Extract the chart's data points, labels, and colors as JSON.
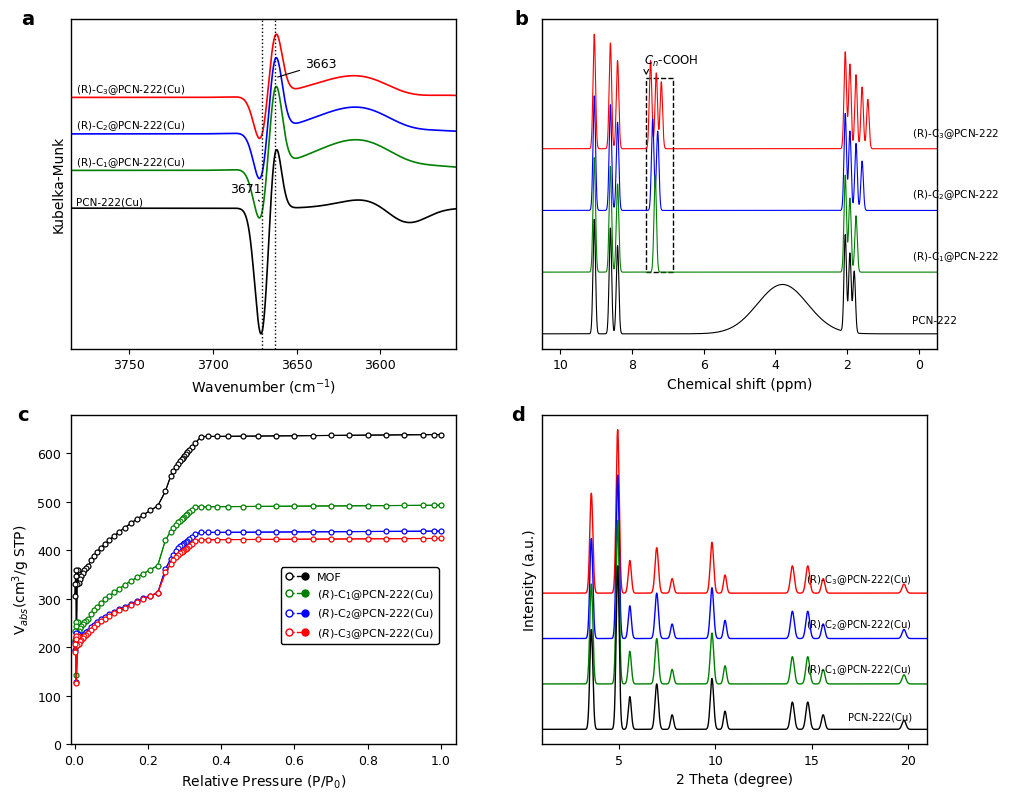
{
  "panel_a": {
    "xlabel": "Wavenumber (cm$^{-1}$)",
    "ylabel": "Kubelka-Munk",
    "xlim": [
      3785,
      3555
    ],
    "xticks": [
      3750,
      3700,
      3650,
      3600
    ],
    "labels": [
      "(R)-C$_3$@PCN-222(Cu)",
      "(R)-C$_2$@PCN-222(Cu)",
      "(R)-C$_1$@PCN-222(Cu)",
      "PCN-222(Cu)"
    ],
    "colors": [
      "red",
      "blue",
      "green",
      "black"
    ],
    "vline1": 3671,
    "vline2": 3663
  },
  "panel_b": {
    "xlabel": "Chemical shift (ppm)",
    "xlim": [
      10.5,
      -0.5
    ],
    "xticks": [
      10,
      8,
      6,
      4,
      2,
      0
    ],
    "labels": [
      "(R)-C$_3$@PCN-222",
      "(R)-C$_2$@PCN-222",
      "(R)-C$_1$@PCN-222",
      "PCN-222"
    ],
    "colors": [
      "red",
      "blue",
      "green",
      "black"
    ]
  },
  "panel_c": {
    "xlabel": "Relative Pressure (P/P$_0$)",
    "ylabel": "V$_{abs}$(cm$^3$/g STP)",
    "xlim": [
      -0.01,
      1.02
    ],
    "ylim": [
      0,
      680
    ],
    "xticks": [
      0.0,
      0.2,
      0.4,
      0.6,
      0.8,
      1.0
    ],
    "yticks": [
      0,
      100,
      200,
      300,
      400,
      500,
      600
    ],
    "legend_labels": [
      "MOF",
      "$(R)$-C$_1$@PCN-222(Cu)",
      "$(R)$-C$_2$@PCN-222(Cu)",
      "$(R)$-C$_3$@PCN-222(Cu)"
    ],
    "colors": [
      "black",
      "green",
      "blue",
      "red"
    ]
  },
  "panel_d": {
    "xlabel": "2 Theta (degree)",
    "ylabel": "Intensity (a.u.)",
    "xlim": [
      1,
      21
    ],
    "xticks": [
      5,
      10,
      15,
      20
    ],
    "labels": [
      "(R)-C$_3$@PCN-222(Cu)",
      "(R)-C$_2$@PCN-222(Cu)",
      "(R)-C$_1$@PCN-222(Cu)",
      "PCN-222(Cu)"
    ],
    "colors": [
      "red",
      "blue",
      "green",
      "black"
    ]
  }
}
